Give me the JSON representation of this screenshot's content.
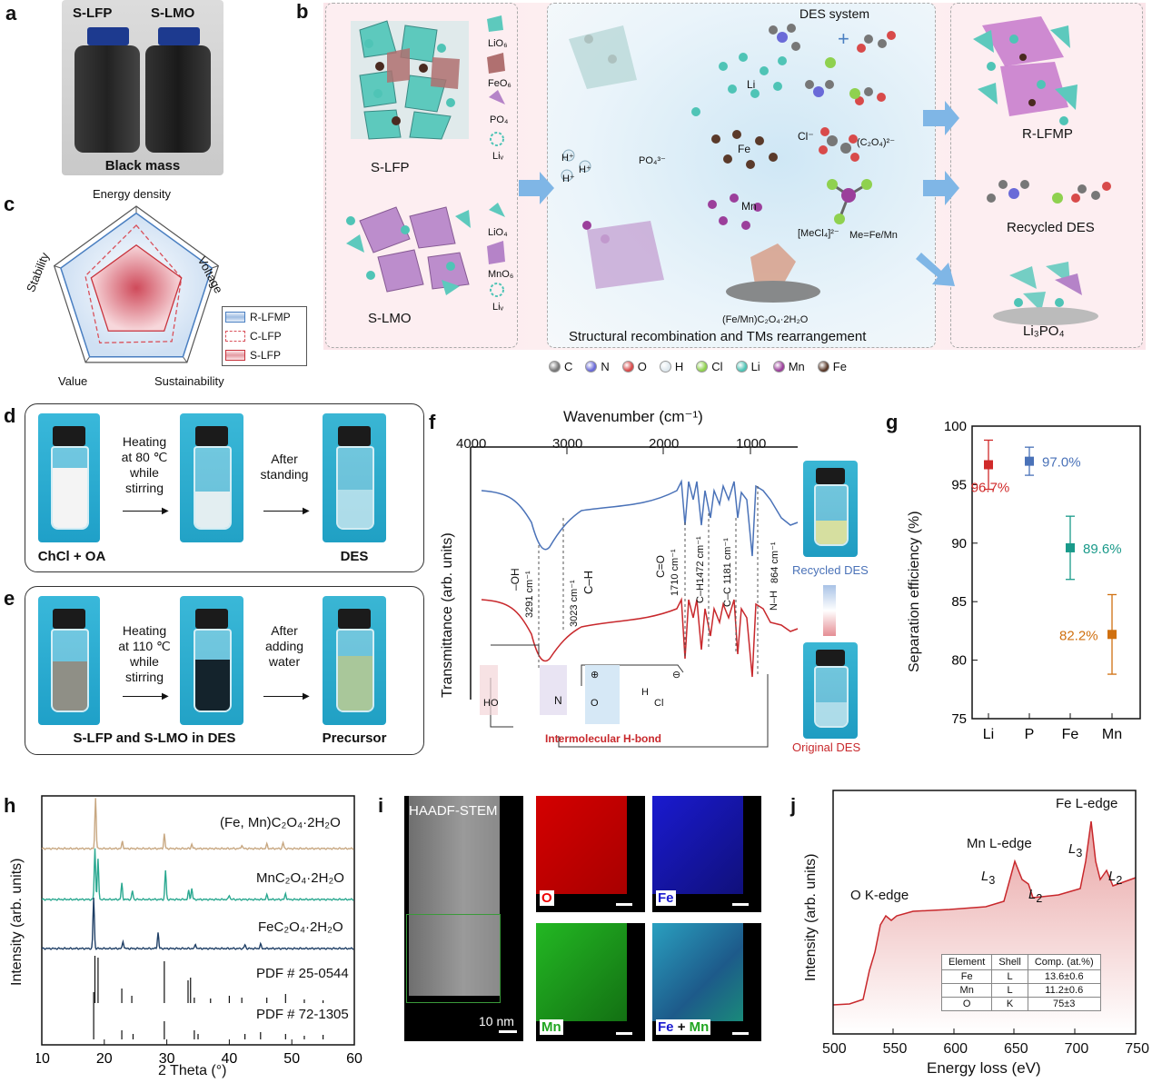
{
  "panel_labels": {
    "a": "a",
    "b": "b",
    "c": "c",
    "d": "d",
    "e": "e",
    "f": "f",
    "g": "g",
    "h": "h",
    "i": "i",
    "j": "j"
  },
  "panel_a": {
    "label_left": "S-LFP",
    "label_right": "S-LMO",
    "caption": "Black mass"
  },
  "panel_b": {
    "left_top": "S-LFP",
    "left_bottom": "S-LMO",
    "legend_items_top": [
      "LiO₆",
      "FeO₆",
      "PO₄",
      "Liᵥ"
    ],
    "legend_items_bottom": [
      "LiO₄",
      "MnO₆",
      "Liᵥ"
    ],
    "des_system": "DES system",
    "h_plus": "H⁺",
    "po4": "PO₄³⁻",
    "li": "Li",
    "fe": "Fe",
    "mn": "Mn",
    "cl": "Cl⁻",
    "c2o4": "(C₂O₄)²⁻",
    "mecl4": "[MeCl₄]²⁻",
    "me": "Me=Fe/Mn",
    "oxalate": "(Fe/Mn)C₂O₄·2H₂O",
    "middle_caption": "Structural recombination and TMs rearrangement",
    "right_top": "R-LFMP",
    "right_mid": "Recycled DES",
    "right_bottom": "Li₃PO₄",
    "atom_legend": [
      {
        "sym": "C",
        "color": "#777777"
      },
      {
        "sym": "N",
        "color": "#6a6ad8"
      },
      {
        "sym": "O",
        "color": "#d84a4a"
      },
      {
        "sym": "H",
        "color": "#dfe8ee"
      },
      {
        "sym": "Cl",
        "color": "#8fd14f"
      },
      {
        "sym": "Li",
        "color": "#4fc4b6"
      },
      {
        "sym": "Mn",
        "color": "#9b3f9b"
      },
      {
        "sym": "Fe",
        "color": "#5a3a2a"
      }
    ]
  },
  "panel_c": {
    "axes": [
      "Energy density",
      "Voltage",
      "Sustainability",
      "Value",
      "Stability"
    ],
    "series": [
      {
        "name": "R-LFMP",
        "color": "#4a7fc1",
        "values": [
          0.92,
          0.92,
          0.92,
          0.92,
          0.92
        ]
      },
      {
        "name": "C-LFP",
        "color": "#d9505a",
        "values": [
          0.78,
          0.55,
          0.7,
          0.72,
          0.62
        ]
      },
      {
        "name": "S-LFP",
        "color": "#c8323c",
        "values": [
          0.55,
          0.55,
          0.55,
          0.55,
          0.55
        ]
      }
    ]
  },
  "panel_d": {
    "step1": "Heating at 80 ℃ while stirring",
    "step2": "After standing",
    "cap_left": "ChCl + OA",
    "cap_right": "DES"
  },
  "panel_e": {
    "step1": "Heating at 110 ℃ while stirring",
    "step2": "After adding water",
    "cap_left": "S-LFP and S-LMO in DES",
    "cap_right": "Precursor"
  },
  "panel_f": {
    "top_axis": "Wavenumber (cm⁻¹)",
    "ticks": [
      "4000",
      "3000",
      "2000",
      "1000"
    ],
    "ylabel": "Transmittance (arb. units)",
    "peaks": [
      "–OH",
      "3291 cm⁻¹",
      "3023 cm⁻¹",
      "C–H",
      "C=O",
      "1710 cm⁻¹",
      "C–H1472 cm⁻¹",
      "C–C 1181 cm⁻¹",
      "N–H",
      "864 cm⁻¹"
    ],
    "recycled": "Recycled DES",
    "original": "Original DES",
    "hbond": "Intermolecular H-bond",
    "mol_ho": "HO",
    "mol_n": "N",
    "mol_cl": "Cl",
    "mol_h": "H",
    "mol_o": "O",
    "plus": "⊕",
    "minus": "⊖"
  },
  "panel_g": {
    "ylabel": "Separation efficiency (%)",
    "yticks": [
      "75",
      "80",
      "85",
      "90",
      "95",
      "100"
    ],
    "chart_data": {
      "type": "scatter",
      "categories": [
        "Li",
        "P",
        "Fe",
        "Mn"
      ],
      "values": [
        96.7,
        97.0,
        89.6,
        82.2
      ],
      "errors": [
        2.1,
        1.2,
        2.7,
        3.4
      ],
      "labels": [
        "96.7%",
        "97.0%",
        "89.6%",
        "82.2%"
      ],
      "colors": [
        "#d02a2a",
        "#4a72b8",
        "#1a9a8a",
        "#d07010"
      ],
      "ylim": [
        75,
        100
      ]
    }
  },
  "panel_h": {
    "xlabel": "2 Theta (°)",
    "ylabel": "Intensity (arb. units)",
    "xticks": [
      "10",
      "20",
      "30",
      "40",
      "50",
      "60"
    ],
    "series": [
      {
        "name": "(Fe, Mn)C₂O₄·2H₂O",
        "color": "#c8a882"
      },
      {
        "name": "MnC₂O₄·2H₂O",
        "color": "#2aa890"
      },
      {
        "name": "FeC₂O₄·2H₂O",
        "color": "#1f3f66"
      }
    ],
    "pdf1": "PDF # 25-0544",
    "pdf2": "PDF # 72-1305"
  },
  "panel_i": {
    "haadf": "HAADF-STEM",
    "scale": "10 nm",
    "o": "O",
    "fe": "Fe",
    "mn": "Mn",
    "plus": "+"
  },
  "panel_j": {
    "xlabel": "Energy loss (eV)",
    "ylabel": "Intensity (arb. units)",
    "xticks": [
      "500",
      "550",
      "600",
      "650",
      "700",
      "750"
    ],
    "fe_edge": "Fe L-edge",
    "mn_edge": "Mn L-edge",
    "o_edge": "O K-edge",
    "l3": "L",
    "l2": "L",
    "table": {
      "headers": [
        "Element",
        "Shell",
        "Comp. (at.%)"
      ],
      "rows": [
        [
          "Fe",
          "L",
          "13.6±0.6"
        ],
        [
          "Mn",
          "L",
          "11.2±0.6"
        ],
        [
          "O",
          "K",
          "75±3"
        ]
      ]
    }
  }
}
